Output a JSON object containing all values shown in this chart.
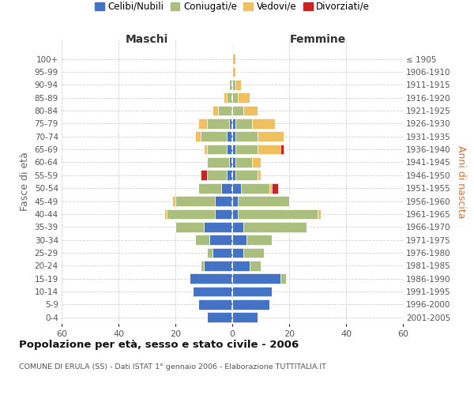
{
  "age_groups": [
    "0-4",
    "5-9",
    "10-14",
    "15-19",
    "20-24",
    "25-29",
    "30-34",
    "35-39",
    "40-44",
    "45-49",
    "50-54",
    "55-59",
    "60-64",
    "65-69",
    "70-74",
    "75-79",
    "80-84",
    "85-89",
    "90-94",
    "95-99",
    "100+"
  ],
  "birth_years": [
    "2001-2005",
    "1996-2000",
    "1991-1995",
    "1986-1990",
    "1981-1985",
    "1976-1980",
    "1971-1975",
    "1966-1970",
    "1961-1965",
    "1956-1960",
    "1951-1955",
    "1946-1950",
    "1941-1945",
    "1936-1940",
    "1931-1935",
    "1926-1930",
    "1921-1925",
    "1916-1920",
    "1911-1915",
    "1906-1910",
    "≤ 1905"
  ],
  "colors": {
    "celibi": "#4472C4",
    "coniugati": "#AABF7E",
    "vedovi": "#F0C060",
    "divorziati": "#CC2222"
  },
  "maschi": {
    "celibi": [
      9,
      12,
      14,
      15,
      10,
      7,
      8,
      10,
      6,
      6,
      4,
      2,
      1,
      2,
      2,
      1,
      0,
      0,
      0,
      0,
      0
    ],
    "coniugati": [
      0,
      0,
      0,
      0,
      1,
      2,
      5,
      10,
      17,
      14,
      8,
      7,
      8,
      7,
      9,
      8,
      5,
      2,
      1,
      0,
      0
    ],
    "vedovi": [
      0,
      0,
      0,
      0,
      0,
      0,
      0,
      0,
      1,
      1,
      0,
      0,
      0,
      1,
      2,
      3,
      2,
      1,
      0,
      0,
      0
    ],
    "divorziati": [
      0,
      0,
      0,
      0,
      0,
      0,
      0,
      0,
      0,
      0,
      0,
      2,
      0,
      0,
      0,
      0,
      0,
      0,
      0,
      0,
      0
    ]
  },
  "femmine": {
    "celibi": [
      9,
      13,
      14,
      17,
      6,
      4,
      5,
      4,
      2,
      2,
      3,
      1,
      1,
      1,
      1,
      1,
      0,
      0,
      0,
      0,
      0
    ],
    "coniugati": [
      0,
      0,
      0,
      2,
      4,
      7,
      9,
      22,
      28,
      18,
      10,
      8,
      6,
      8,
      8,
      6,
      4,
      2,
      1,
      0,
      0
    ],
    "vedovi": [
      0,
      0,
      0,
      0,
      0,
      0,
      0,
      0,
      1,
      0,
      1,
      1,
      3,
      8,
      9,
      8,
      5,
      4,
      2,
      1,
      1
    ],
    "divorziati": [
      0,
      0,
      0,
      0,
      0,
      0,
      0,
      0,
      0,
      0,
      2,
      0,
      0,
      1,
      0,
      0,
      0,
      0,
      0,
      0,
      0
    ]
  },
  "xlim": 60,
  "title": "Popolazione per età, sesso e stato civile - 2006",
  "subtitle": "COMUNE DI ERULA (SS) - Dati ISTAT 1° gennaio 2006 - Elaborazione TUTTITALIA.IT",
  "ylabel_left": "Fasce di età",
  "ylabel_right": "Anni di nascita",
  "xlabel_left": "Maschi",
  "xlabel_right": "Femmine",
  "legend_labels": [
    "Celibi/Nubili",
    "Coniugati/e",
    "Vedovi/e",
    "Divorziati/e"
  ],
  "background_color": "#ffffff",
  "grid_color": "#cccccc"
}
